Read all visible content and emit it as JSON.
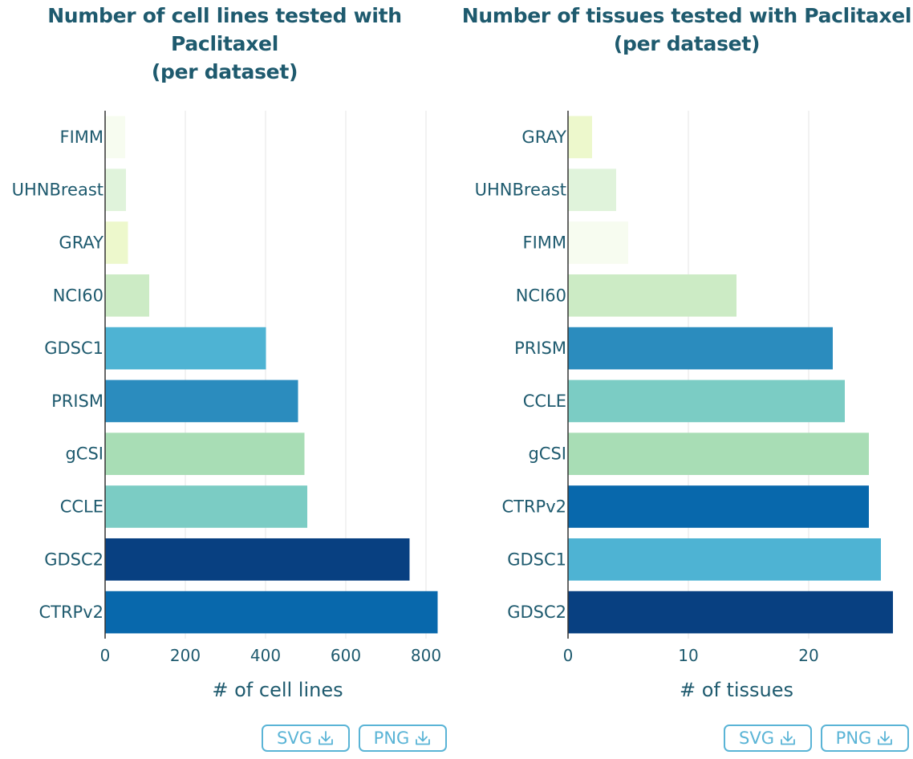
{
  "buttons": {
    "svg_label": "SVG",
    "png_label": "PNG"
  },
  "charts": [
    {
      "id": "cell-lines",
      "title_line1": "Number of cell lines tested with Paclitaxel",
      "title_line2": "(per dataset)"
    },
    {
      "id": "tissues",
      "title_line1": "Number of tissues tested with Paclitaxel",
      "title_line2": "(per dataset)"
    }
  ],
  "chart_data": [
    {
      "type": "bar",
      "orientation": "horizontal",
      "title": "Number of cell lines tested with Paclitaxel (per dataset)",
      "xlabel": "# of cell lines",
      "ylabel": "",
      "categories": [
        "FIMM",
        "UHNBreast",
        "GRAY",
        "NCI60",
        "GDSC1",
        "PRISM",
        "gCSI",
        "CCLE",
        "GDSC2",
        "CTRPv2"
      ],
      "values": [
        50,
        52,
        57,
        110,
        401,
        481,
        497,
        504,
        759,
        829
      ],
      "colors": [
        "#f7fcf0",
        "#e0f3db",
        "#edf8cc",
        "#ccebc5",
        "#4eb3d3",
        "#2b8cbe",
        "#a8ddb5",
        "#7bccc4",
        "#084081",
        "#0868ac"
      ],
      "xlim": [
        0,
        860
      ],
      "xticks": [
        0,
        200,
        400,
        600,
        800
      ],
      "grid": true
    },
    {
      "type": "bar",
      "orientation": "horizontal",
      "title": "Number of tissues tested with Paclitaxel (per dataset)",
      "xlabel": "# of tissues",
      "ylabel": "",
      "categories": [
        "GRAY",
        "UHNBreast",
        "FIMM",
        "NCI60",
        "PRISM",
        "CCLE",
        "gCSI",
        "CTRPv2",
        "GDSC1",
        "GDSC2"
      ],
      "values": [
        2,
        4,
        5,
        14,
        22,
        23,
        25,
        25,
        26,
        27
      ],
      "colors": [
        "#edf8cc",
        "#e0f3db",
        "#f7fcf0",
        "#ccebc5",
        "#2b8cbe",
        "#7bccc4",
        "#a8ddb5",
        "#0868ac",
        "#4eb3d3",
        "#084081"
      ],
      "xlim": [
        0,
        28
      ],
      "xticks": [
        0,
        10,
        20
      ],
      "grid": true
    }
  ]
}
